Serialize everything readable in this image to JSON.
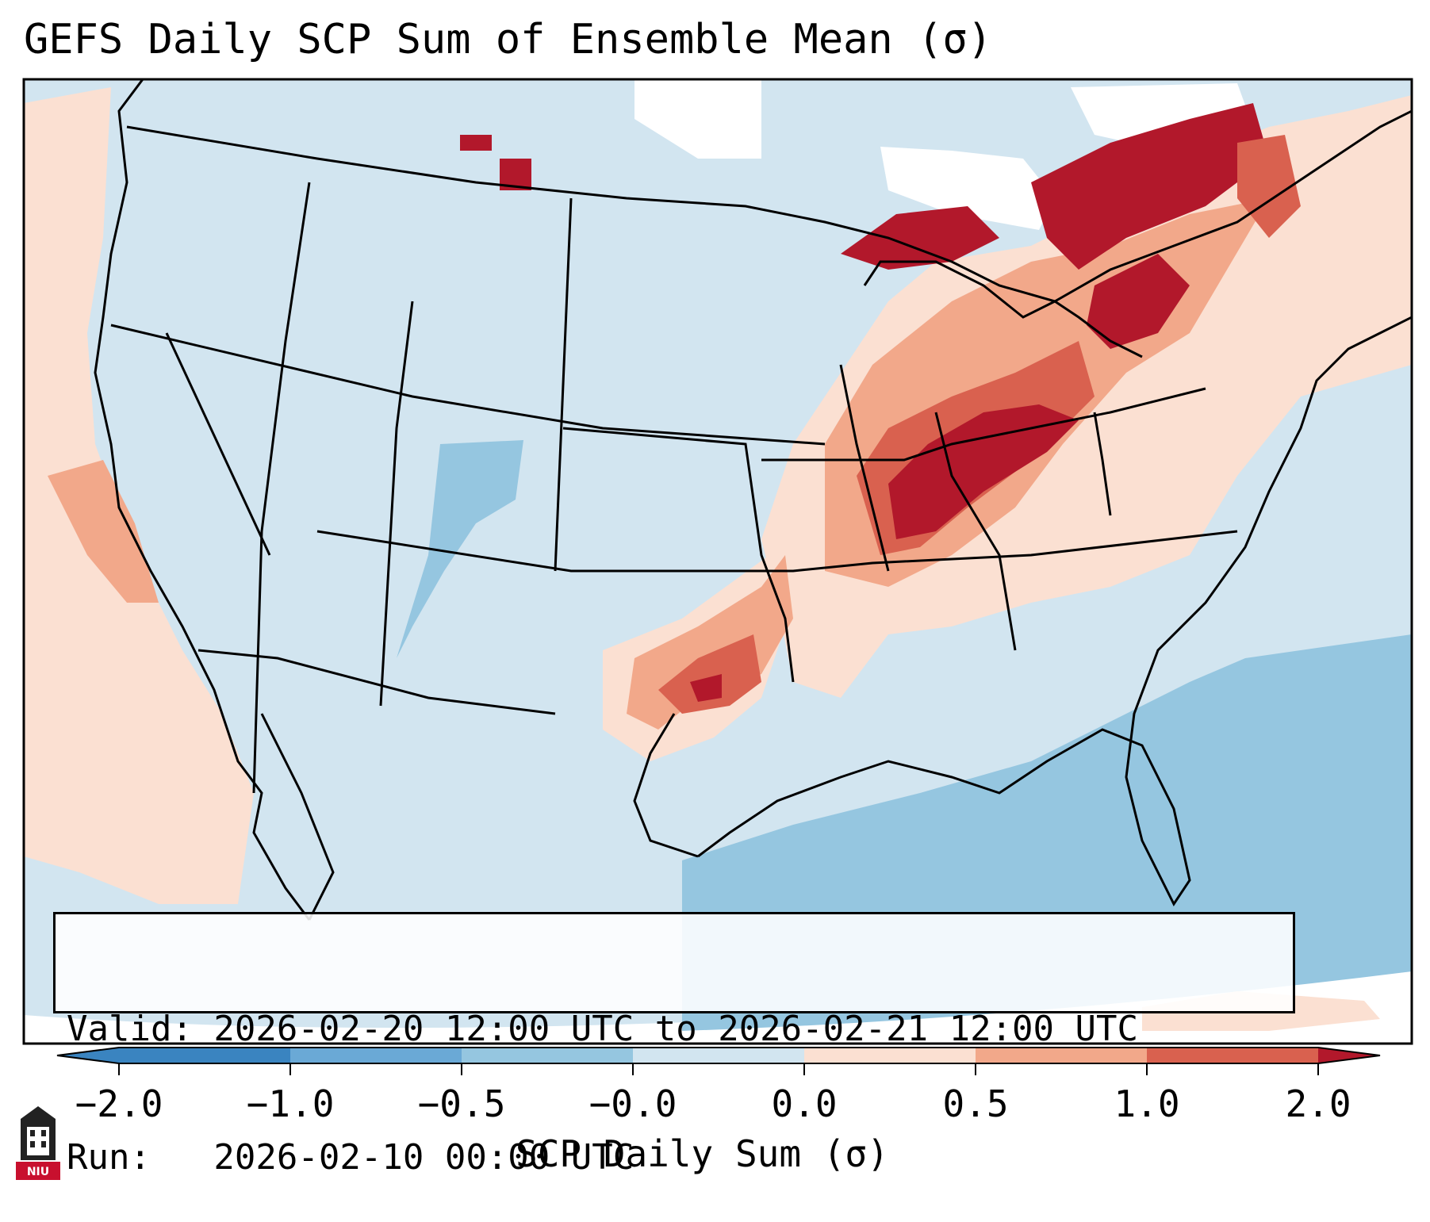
{
  "title": "GEFS Daily SCP Sum of Ensemble Mean (σ)",
  "info": {
    "valid_line": "Valid: 2026-02-20 12:00 UTC to 2026-02-21 12:00 UTC",
    "run_line": "Run:   2026-02-10 00:00 UTC"
  },
  "colorbar": {
    "label": "SCP Daily Sum (σ)",
    "ticks": [
      "−2.0",
      "−1.0",
      "−0.5",
      "−0.0",
      "0.0",
      "0.5",
      "1.0",
      "2.0"
    ],
    "colors": [
      "#3a84c0",
      "#6aa9d6",
      "#95c6e0",
      "#d2e5f0",
      "#fbe0d2",
      "#f2a88a",
      "#d9614f",
      "#b2182b"
    ],
    "extend": "both"
  },
  "logo": {
    "text": "NIU",
    "color": "#c8102e"
  },
  "map_colors": {
    "land_bg": "#d2e5f0",
    "ocean_neg": "#95c6e0",
    "pos_light": "#fbe0d2",
    "pos_mid": "#f2a88a",
    "pos_high": "#d9614f",
    "pos_max": "#b2182b",
    "no_data": "#ffffff"
  }
}
